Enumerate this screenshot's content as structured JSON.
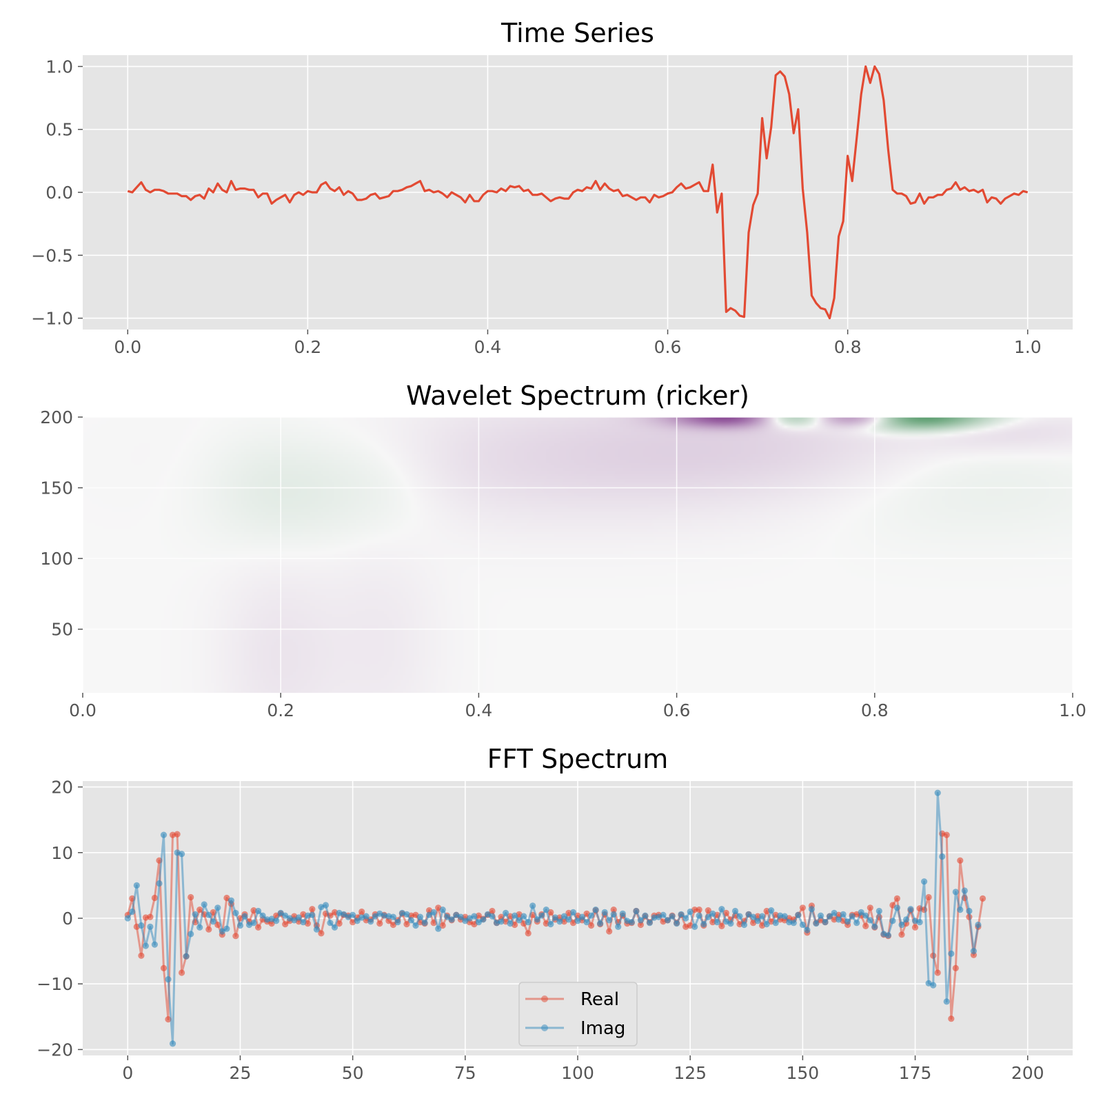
{
  "colors": {
    "axes_bg": "#e5e5e5",
    "grid": "#ffffff",
    "tick_label": "#555555",
    "series_red": "#e24a33",
    "series_blue": "#348abd",
    "div_pos": "#1b7837",
    "div_neg": "#762a83"
  },
  "chart_data": [
    {
      "type": "line",
      "title": "Time Series",
      "xlabel": "",
      "ylabel": "",
      "xlim": [
        -0.05,
        1.05
      ],
      "ylim": [
        -1.09,
        1.09
      ],
      "xticks": [
        0,
        0.2,
        0.4,
        0.6,
        0.8,
        1.0
      ],
      "xtick_labels": [
        "0.0",
        "0.2",
        "0.4",
        "0.6",
        "0.8",
        "1.0"
      ],
      "yticks": [
        -1,
        -0.5,
        0,
        0.5,
        1
      ],
      "ytick_labels": [
        "−1.0",
        "−0.5",
        "0.0",
        "0.5",
        "1.0"
      ],
      "grid": true,
      "x_start": 0,
      "x_step": 0.005,
      "series": [
        {
          "color": "#e24a33",
          "values": [
            0.01,
            0.0,
            0.04,
            0.08,
            0.02,
            0.0,
            0.02,
            0.02,
            0.01,
            -0.01,
            -0.01,
            -0.01,
            -0.03,
            -0.03,
            -0.06,
            -0.03,
            -0.02,
            -0.05,
            0.03,
            0.0,
            0.07,
            0.02,
            0.0,
            0.09,
            0.02,
            0.03,
            0.03,
            0.02,
            0.02,
            -0.04,
            -0.01,
            -0.01,
            -0.09,
            -0.06,
            -0.04,
            -0.02,
            -0.08,
            -0.02,
            0.0,
            -0.02,
            0.01,
            0.0,
            0.0,
            0.06,
            0.08,
            0.03,
            0.01,
            0.04,
            -0.02,
            0.01,
            -0.01,
            -0.06,
            -0.06,
            -0.05,
            -0.02,
            -0.01,
            -0.05,
            -0.04,
            -0.03,
            0.01,
            0.01,
            0.02,
            0.04,
            0.05,
            0.07,
            0.09,
            0.01,
            0.02,
            0.0,
            0.01,
            -0.01,
            -0.04,
            0.0,
            -0.02,
            -0.04,
            -0.08,
            -0.02,
            -0.07,
            -0.07,
            -0.02,
            0.01,
            0.01,
            0.0,
            0.03,
            0.01,
            0.05,
            0.04,
            0.05,
            0.01,
            0.02,
            -0.02,
            -0.02,
            -0.01,
            -0.04,
            -0.07,
            -0.05,
            -0.04,
            -0.05,
            -0.05,
            0.0,
            0.02,
            0.01,
            0.04,
            0.03,
            0.09,
            0.02,
            0.07,
            0.03,
            0.01,
            0.02,
            -0.03,
            -0.02,
            -0.04,
            -0.06,
            -0.04,
            -0.04,
            -0.08,
            -0.02,
            -0.04,
            -0.03,
            -0.01,
            0.0,
            0.04,
            0.07,
            0.03,
            0.04,
            0.06,
            0.08,
            0.01,
            0.01,
            0.22,
            -0.16,
            -0.01,
            -0.95,
            -0.92,
            -0.94,
            -0.98,
            -0.99,
            -0.32,
            -0.1,
            -0.01,
            0.59,
            0.27,
            0.52,
            0.93,
            0.96,
            0.92,
            0.78,
            0.47,
            0.66,
            0.03,
            -0.32,
            -0.82,
            -0.88,
            -0.92,
            -0.93,
            -1.0,
            -0.84,
            -0.35,
            -0.23,
            0.29,
            0.09,
            0.43,
            0.78,
            1.0,
            0.87,
            1.0,
            0.94,
            0.73,
            0.34,
            0.02,
            -0.01,
            -0.01,
            -0.03,
            -0.09,
            -0.08,
            -0.01,
            -0.09,
            -0.04,
            -0.04,
            -0.02,
            -0.02,
            0.02,
            0.03,
            0.08,
            0.02,
            0.04,
            0.01,
            0.02,
            0.0,
            0.02,
            -0.08,
            -0.04,
            -0.05,
            -0.09,
            -0.05,
            -0.03,
            -0.01,
            -0.02,
            0.01,
            0.0
          ]
        }
      ]
    },
    {
      "type": "heatmap",
      "title": "Wavelet Spectrum (ricker)",
      "xlabel": "",
      "ylabel": "",
      "colormap": "PRGn",
      "xlim": [
        0,
        1
      ],
      "ylim": [
        5,
        200
      ],
      "xticks": [
        0,
        0.2,
        0.4,
        0.6,
        0.8,
        1.0
      ],
      "xtick_labels": [
        "0.0",
        "0.2",
        "0.4",
        "0.6",
        "0.8",
        "1.0"
      ],
      "yticks": [
        50,
        100,
        150,
        200
      ],
      "ytick_labels": [
        "50",
        "100",
        "150",
        "200"
      ],
      "grid": true,
      "features": [
        {
          "x": 0.665,
          "y": 200,
          "sx": 0.045,
          "sy": 5,
          "value": -0.9
        },
        {
          "x": 0.718,
          "y": 200,
          "sx": 0.035,
          "sy": 5,
          "value": 1.0
        },
        {
          "x": 0.775,
          "y": 200,
          "sx": 0.04,
          "sy": 5,
          "value": -1.0
        },
        {
          "x": 0.83,
          "y": 200,
          "sx": 0.05,
          "sy": 6,
          "value": 0.9
        },
        {
          "x": 0.75,
          "y": 180,
          "sx": 0.2,
          "sy": 25,
          "value": -0.12
        },
        {
          "x": 0.88,
          "y": 175,
          "sx": 0.12,
          "sy": 30,
          "value": 0.1
        },
        {
          "x": 0.48,
          "y": 165,
          "sx": 0.17,
          "sy": 30,
          "value": -0.06
        },
        {
          "x": 0.2,
          "y": 150,
          "sx": 0.05,
          "sy": 28,
          "value": 0.06
        },
        {
          "x": 0.3,
          "y": 155,
          "sx": 0.05,
          "sy": 28,
          "value": 0.05
        },
        {
          "x": 0.2,
          "y": 30,
          "sx": 0.04,
          "sy": 45,
          "value": -0.05
        },
        {
          "x": 0.3,
          "y": 40,
          "sx": 0.04,
          "sy": 50,
          "value": -0.035
        },
        {
          "x": 0.93,
          "y": 190,
          "sx": 0.07,
          "sy": 10,
          "value": -0.08
        }
      ]
    },
    {
      "type": "line",
      "title": "FFT Spectrum",
      "xlabel": "",
      "ylabel": "",
      "xlim": [
        -10,
        210
      ],
      "ylim": [
        -20.9,
        20.9
      ],
      "xticks": [
        0,
        25,
        50,
        75,
        100,
        125,
        150,
        175,
        200
      ],
      "xtick_labels": [
        "0",
        "25",
        "50",
        "75",
        "100",
        "125",
        "150",
        "175",
        "200"
      ],
      "yticks": [
        -20,
        -10,
        0,
        10,
        20
      ],
      "ytick_labels": [
        "−20",
        "−10",
        "0",
        "10",
        "20"
      ],
      "grid": true,
      "legend_position": "lower-center",
      "x_start": 0,
      "x_step": 1,
      "series": [
        {
          "name": "Real",
          "color": "#e24a33",
          "values": [
            0.5,
            3.0,
            -1.3,
            -5.7,
            0.1,
            0.2,
            3.1,
            8.8,
            -7.6,
            -15.4,
            12.7,
            12.8,
            -8.3,
            -5.8,
            3.2,
            -0.6,
            1.3,
            0.6,
            -1.7,
            0.9,
            -1.0,
            -2.5,
            3.1,
            2.2,
            -2.7,
            0.0,
            0.6,
            -0.5,
            1.2,
            -1.4,
            -0.2,
            -0.5,
            -0.8,
            0.4,
            0.7,
            -0.9,
            -0.4,
            0.3,
            -0.5,
            0.6,
            -0.8,
            1.4,
            -1.1,
            -2.3,
            0.7,
            0.4,
            0.9,
            -0.8,
            0.5,
            0.4,
            -0.6,
            0.1,
            1.0,
            -0.3,
            -0.2,
            0.6,
            -0.8,
            0.5,
            -0.4,
            -1.0,
            -0.3,
            0.7,
            -0.9,
            0.4,
            0.5,
            -0.6,
            -0.8,
            1.2,
            -0.7,
            1.6,
            -1.1,
            0.4,
            -0.3,
            0.5,
            -0.2,
            0.2,
            -0.6,
            -0.9,
            0.4,
            -0.1,
            0.5,
            1.1,
            -0.7,
            0.2,
            -0.5,
            0.3,
            -1.0,
            0.6,
            -0.8,
            -2.3,
            0.5,
            -0.5,
            0.6,
            -0.8,
            0.9,
            -0.2,
            0.1,
            -0.5,
            0.8,
            -0.7,
            0.4,
            -0.3,
            0.7,
            -1.1,
            1.2,
            -0.9,
            0.6,
            -2.0,
            1.3,
            -0.6,
            0.4,
            -0.8,
            -0.7,
            1.1,
            -1.0,
            0.3,
            -0.6,
            0.4,
            0.5,
            -0.5,
            -0.3,
            0.4,
            -0.7,
            0.5,
            -1.3,
            -1.1,
            1.3,
            1.3,
            -1.1,
            1.2,
            -0.6,
            0.5,
            -1.2,
            0.8,
            -0.2,
            0.4,
            -0.9,
            -0.4,
            0.6,
            -0.7,
            0.3,
            -1.1,
            1.1,
            -0.5,
            0.5,
            -0.2,
            -0.3,
            0.0,
            -0.2,
            0.5,
            1.6,
            -2.2,
            1.9,
            -0.7,
            -0.3,
            -0.6,
            0.3,
            -0.2,
            0.5,
            -0.4,
            -1.0,
            0.5,
            0.6,
            0.4,
            -1.2,
            1.6,
            -1.4,
            0.2,
            -2.5,
            -2.7,
            2.0,
            3.0,
            -2.5,
            -0.8,
            1.2,
            -1.4,
            1.5,
            1.3,
            3.2,
            -5.7,
            -8.3,
            12.9,
            12.7,
            -15.3,
            -7.6,
            8.8,
            3.1,
            0.2,
            -5.6,
            -1.3,
            3.0
          ]
        },
        {
          "name": "Imag",
          "color": "#348abd",
          "values": [
            0.0,
            1.0,
            5.0,
            -1.1,
            -4.2,
            -1.3,
            -4.0,
            5.3,
            12.7,
            -9.3,
            -19.1,
            10.0,
            9.8,
            -5.8,
            -2.4,
            0.6,
            -1.4,
            2.1,
            0.5,
            -0.5,
            1.6,
            -2.0,
            -1.6,
            2.7,
            0.8,
            -1.1,
            0.3,
            -1.0,
            -0.7,
            1.1,
            0.4,
            -0.2,
            -0.1,
            -0.4,
            0.8,
            0.4,
            0.0,
            -0.3,
            0.1,
            -0.6,
            0.4,
            0.5,
            -1.7,
            1.7,
            2.0,
            -0.7,
            -1.4,
            0.8,
            0.6,
            0.2,
            0.5,
            -0.4,
            0.1,
            0.3,
            -0.5,
            0.3,
            0.7,
            0.4,
            0.3,
            0.2,
            -0.6,
            0.8,
            0.6,
            -0.3,
            -1.1,
            0.2,
            -0.7,
            0.5,
            0.9,
            -1.6,
            1.3,
            0.2,
            -0.2,
            0.5,
            0.2,
            -0.4,
            0.0,
            0.3,
            -0.6,
            -0.2,
            0.6,
            0.3,
            -0.7,
            -0.5,
            0.8,
            -0.8,
            0.4,
            -0.3,
            0.3,
            -0.6,
            1.9,
            -0.2,
            0.4,
            1.3,
            -0.9,
            0.1,
            -0.5,
            0.3,
            -0.2,
            0.9,
            -0.4,
            0.2,
            -0.6,
            0.4,
            1.3,
            -0.8,
            0.9,
            -0.3,
            0.6,
            -1.3,
            0.7,
            -0.4,
            -0.6,
            1.1,
            -0.3,
            0.4,
            -0.7,
            0.1,
            0.2,
            0.5,
            -0.3,
            0.3,
            -0.8,
            0.6,
            0.0,
            1.0,
            -1.3,
            0.4,
            -0.9,
            0.2,
            0.7,
            -0.6,
            1.4,
            -0.5,
            -0.8,
            1.1,
            0.3,
            -1.0,
            0.6,
            0.2,
            -0.4,
            0.3,
            -0.9,
            1.2,
            -0.7,
            0.4,
            0.3,
            -0.6,
            -0.7,
            0.5,
            -1.0,
            -1.8,
            1.4,
            -0.8,
            0.4,
            -0.6,
            0.3,
            0.8,
            -0.2,
            0.6,
            -0.5,
            0.3,
            -0.7,
            0.9,
            0.4,
            -0.3,
            -1.3,
            1.1,
            -2.4,
            -2.6,
            -0.4,
            1.6,
            -1.0,
            -0.2,
            1.4,
            -0.4,
            -0.6,
            5.6,
            -9.9,
            -10.2,
            19.1,
            9.4,
            -12.7,
            -5.4,
            4.0,
            1.3,
            4.2,
            1.1,
            -5.0,
            -1.0
          ]
        }
      ]
    }
  ]
}
